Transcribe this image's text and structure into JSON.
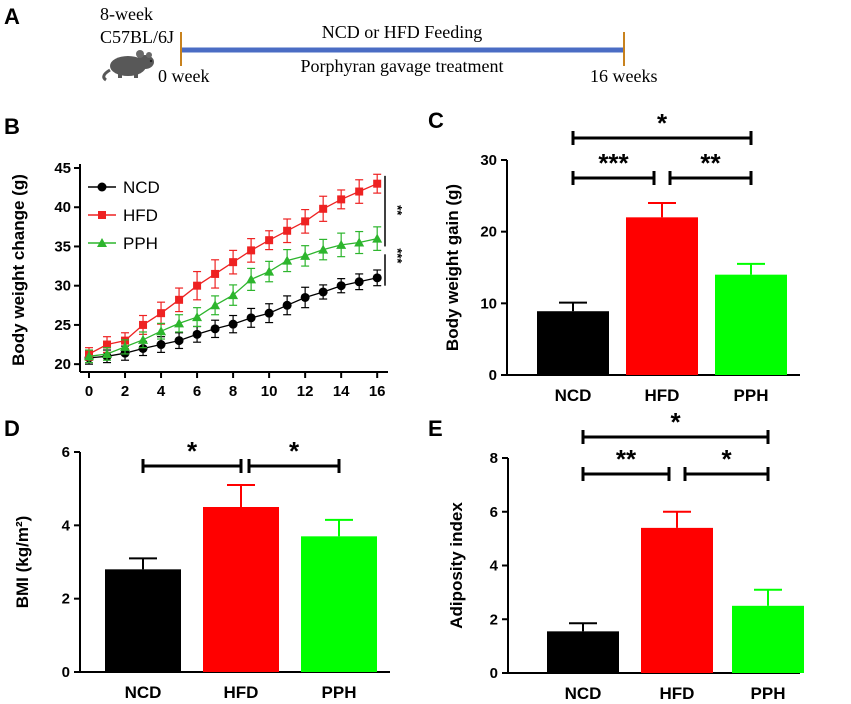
{
  "panels": {
    "A": "A",
    "B": "B",
    "C": "C",
    "D": "D",
    "E": "E"
  },
  "timeline": {
    "mouse_age": "8-week",
    "strain": "C57BL/6J",
    "top_label": "NCD or HFD Feeding",
    "bottom_label": "Porphyran gavage treatment",
    "start_label": "0 week",
    "end_label": "16 weeks",
    "line_color": "#4a6cc4",
    "tick_color": "#c8821e",
    "icon": "mouse-icon"
  },
  "colors": {
    "NCD": "#000000",
    "HFD": "#ff0000",
    "PPH": "#00ff00",
    "PPH_line": "#2db52d",
    "HFD_line": "#ee2222"
  },
  "chart_data": [
    {
      "id": "B",
      "type": "line",
      "title": "",
      "xlabel": "",
      "ylabel": "Body weight change (g)",
      "x": [
        0,
        1,
        2,
        3,
        4,
        5,
        6,
        7,
        8,
        9,
        10,
        11,
        12,
        13,
        14,
        15,
        16
      ],
      "xticks": [
        "0",
        "2",
        "4",
        "6",
        "8",
        "10",
        "12",
        "14",
        "16"
      ],
      "xtick_values": [
        0,
        2,
        4,
        6,
        8,
        10,
        12,
        14,
        16
      ],
      "yticks": [
        "20",
        "25",
        "30",
        "35",
        "40",
        "45"
      ],
      "ytick_values": [
        20,
        25,
        30,
        35,
        40,
        45
      ],
      "xlim": [
        -0.5,
        16.6
      ],
      "ylim": [
        19,
        45
      ],
      "series": [
        {
          "name": "NCD",
          "marker": "circle",
          "values": [
            20.8,
            21.0,
            21.4,
            22.0,
            22.5,
            23.0,
            23.8,
            24.5,
            25.1,
            25.9,
            26.5,
            27.5,
            28.5,
            29.2,
            30.0,
            30.5,
            31.0
          ],
          "errors": [
            0.8,
            0.8,
            0.9,
            0.9,
            1.0,
            1.0,
            1.0,
            1.1,
            1.1,
            1.2,
            1.2,
            1.2,
            1.3,
            0.9,
            0.9,
            1.0,
            1.0
          ]
        },
        {
          "name": "HFD",
          "marker": "square",
          "values": [
            21.3,
            22.5,
            23.0,
            25.0,
            26.5,
            28.2,
            30.0,
            31.5,
            33.0,
            34.5,
            35.8,
            37.0,
            38.2,
            39.8,
            41.0,
            42.0,
            43.0
          ],
          "errors": [
            0.8,
            1.0,
            1.0,
            1.2,
            1.4,
            1.5,
            1.8,
            1.8,
            1.5,
            1.5,
            1.2,
            1.5,
            1.5,
            1.6,
            1.2,
            1.5,
            1.2
          ]
        },
        {
          "name": "PPH",
          "marker": "triangle",
          "values": [
            21.0,
            21.3,
            22.2,
            23.1,
            24.2,
            25.2,
            26.0,
            27.5,
            28.8,
            30.8,
            31.8,
            33.2,
            33.8,
            34.6,
            35.2,
            35.5,
            36.0
          ],
          "errors": [
            0.8,
            0.8,
            0.9,
            1.0,
            1.0,
            1.1,
            1.2,
            1.2,
            1.3,
            1.4,
            1.3,
            1.4,
            1.3,
            1.3,
            1.5,
            1.4,
            1.5
          ]
        }
      ],
      "annotations": [
        "**",
        "***"
      ]
    },
    {
      "id": "C",
      "type": "bar",
      "ylabel": "Body weight gain (g)",
      "categories": [
        "NCD",
        "HFD",
        "PPH"
      ],
      "values": [
        8.9,
        22.0,
        14.0
      ],
      "errors": [
        1.2,
        2.0,
        1.5
      ],
      "yticks": [
        "0",
        "10",
        "20",
        "30"
      ],
      "ytick_values": [
        0,
        10,
        20,
        30
      ],
      "ylim": [
        0,
        30
      ],
      "brackets": [
        {
          "from": 0,
          "to": 2,
          "label": "*"
        },
        {
          "from": 0,
          "to": 1,
          "label": "***"
        },
        {
          "from": 1,
          "to": 2,
          "label": "**"
        }
      ]
    },
    {
      "id": "D",
      "type": "bar",
      "ylabel": "BMI (kg/m²)",
      "categories": [
        "NCD",
        "HFD",
        "PPH"
      ],
      "values": [
        2.8,
        4.5,
        3.7
      ],
      "errors": [
        0.3,
        0.6,
        0.45
      ],
      "yticks": [
        "0",
        "2",
        "4",
        "6"
      ],
      "ytick_values": [
        0,
        2,
        4,
        6
      ],
      "ylim": [
        0,
        6
      ],
      "brackets": [
        {
          "from": 0,
          "to": 1,
          "label": "*"
        },
        {
          "from": 1,
          "to": 2,
          "label": "*"
        }
      ]
    },
    {
      "id": "E",
      "type": "bar",
      "ylabel": "Adiposity index",
      "categories": [
        "NCD",
        "HFD",
        "PPH"
      ],
      "values": [
        1.55,
        5.4,
        2.5
      ],
      "errors": [
        0.3,
        0.6,
        0.6
      ],
      "yticks": [
        "0",
        "2",
        "4",
        "6",
        "8"
      ],
      "ytick_values": [
        0,
        2,
        4,
        6,
        8
      ],
      "ylim": [
        0,
        8
      ],
      "brackets": [
        {
          "from": 0,
          "to": 2,
          "label": "*"
        },
        {
          "from": 0,
          "to": 1,
          "label": "**"
        },
        {
          "from": 1,
          "to": 2,
          "label": "*"
        }
      ]
    }
  ]
}
